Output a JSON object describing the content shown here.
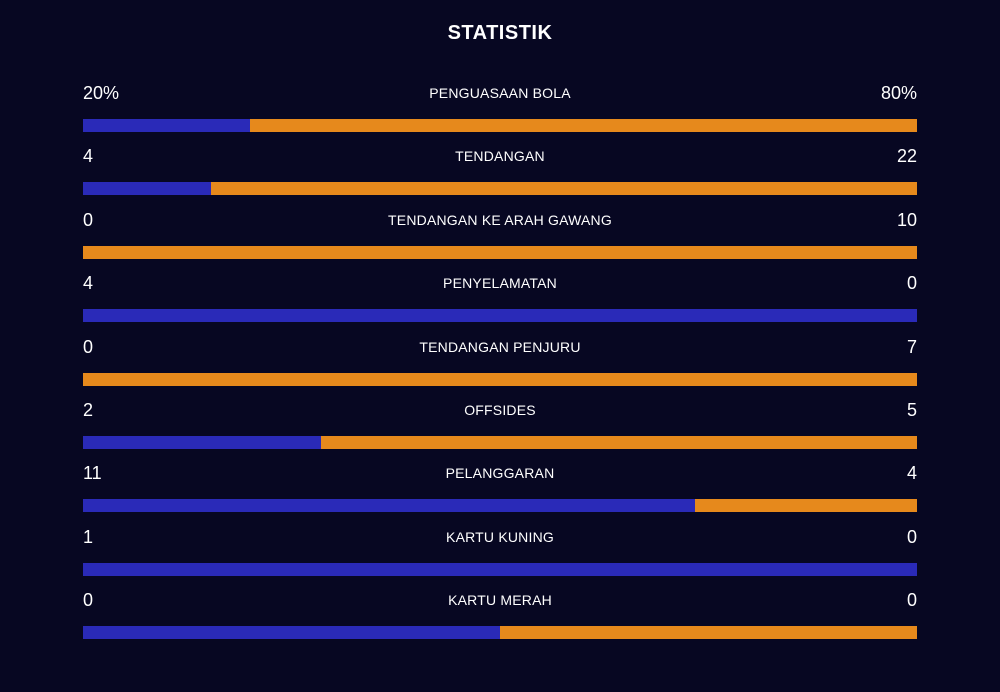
{
  "title": "STATISTIK",
  "colors": {
    "home": "#2a2ab8",
    "away": "#e6891c",
    "background": "#070722"
  },
  "stats": [
    {
      "label": "PENGUASAAN BOLA",
      "left": "20%",
      "right": "80%",
      "home_share": 0.2
    },
    {
      "label": "TENDANGAN",
      "left": "4",
      "right": "22",
      "home_share": 0.1538
    },
    {
      "label": "TENDANGAN KE ARAH GAWANG",
      "left": "0",
      "right": "10",
      "home_share": 0.0
    },
    {
      "label": "PENYELAMATAN",
      "left": "4",
      "right": "0",
      "home_share": 1.0
    },
    {
      "label": "TENDANGAN PENJURU",
      "left": "0",
      "right": "7",
      "home_share": 0.0
    },
    {
      "label": "OFFSIDES",
      "left": "2",
      "right": "5",
      "home_share": 0.2857
    },
    {
      "label": "PELANGGARAN",
      "left": "11",
      "right": "4",
      "home_share": 0.7333
    },
    {
      "label": "KARTU KUNING",
      "left": "1",
      "right": "0",
      "home_share": 1.0
    },
    {
      "label": "KARTU MERAH",
      "left": "0",
      "right": "0",
      "home_share": 0.5
    }
  ]
}
